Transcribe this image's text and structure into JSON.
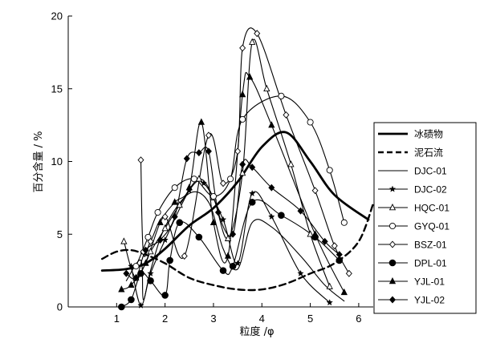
{
  "chart_data": {
    "type": "line",
    "xlabel": "粒度 /φ",
    "ylabel": "百分含量 / %",
    "xlim": [
      0,
      6.3
    ],
    "ylim": [
      0,
      20
    ],
    "xticks": [
      1,
      2,
      3,
      4,
      5,
      6
    ],
    "yticks": [
      0,
      5,
      10,
      15,
      20
    ],
    "legend_position": "right",
    "series": [
      {
        "name": "冰碛物",
        "style": "thick-solid",
        "marker": "none",
        "x": [
          0.7,
          1.2,
          1.6,
          2.0,
          2.5,
          3.0,
          3.5,
          4.0,
          4.5,
          5.0,
          5.5,
          6.2
        ],
        "y": [
          2.5,
          2.6,
          3.0,
          4.0,
          5.6,
          6.8,
          8.6,
          11.0,
          12.0,
          10.0,
          7.7,
          6.0
        ]
      },
      {
        "name": "泥石流",
        "style": "dashed",
        "marker": "none",
        "x": [
          0.7,
          1.0,
          1.3,
          1.6,
          2.0,
          2.5,
          3.0,
          3.5,
          4.0,
          4.5,
          5.0,
          5.5,
          6.0,
          6.3
        ],
        "y": [
          3.3,
          3.8,
          3.9,
          3.6,
          3.0,
          2.0,
          1.5,
          1.2,
          1.2,
          1.6,
          2.3,
          3.0,
          4.5,
          7.1
        ]
      },
      {
        "name": "DJC-01",
        "style": "solid",
        "marker": "none",
        "x": [
          1.2,
          1.5,
          1.55,
          1.7,
          2.0,
          2.5,
          2.9,
          3.2,
          3.5,
          3.8,
          4.2,
          4.8,
          5.3,
          5.7
        ],
        "y": [
          1.8,
          3.2,
          0.5,
          2.5,
          5.5,
          7.8,
          7.2,
          4.0,
          2.6,
          5.8,
          5.5,
          3.5,
          1.5,
          0.4
        ]
      },
      {
        "name": "DJC-02",
        "style": "solid",
        "marker": "star",
        "x": [
          1.3,
          1.5,
          1.7,
          2.0,
          2.5,
          2.8,
          3.2,
          3.5,
          3.8,
          4.2,
          4.8,
          5.4
        ],
        "y": [
          2.8,
          0.1,
          2.3,
          4.6,
          8.0,
          8.5,
          6.0,
          3.0,
          7.8,
          6.2,
          2.3,
          0.3
        ]
      },
      {
        "name": "HQC-01",
        "style": "solid",
        "marker": "triangle-open",
        "x": [
          1.15,
          1.4,
          1.7,
          2.0,
          2.3,
          2.7,
          3.0,
          3.3,
          3.6,
          3.8,
          4.1,
          4.6,
          5.0,
          5.4
        ],
        "y": [
          4.5,
          2.0,
          3.8,
          5.4,
          7.0,
          8.8,
          7.5,
          4.7,
          9.2,
          18.2,
          15.0,
          9.8,
          5.0,
          1.4
        ]
      },
      {
        "name": "GYQ-01",
        "style": "solid",
        "marker": "circle-open",
        "x": [
          1.4,
          1.65,
          1.85,
          2.2,
          2.6,
          3.0,
          3.35,
          3.6,
          4.4,
          5.0,
          5.4,
          5.7
        ],
        "y": [
          2.8,
          4.8,
          6.5,
          8.2,
          8.8,
          7.6,
          8.8,
          12.9,
          14.5,
          12.7,
          9.4,
          5.8
        ]
      },
      {
        "name": "BSZ-01",
        "style": "solid",
        "marker": "diamond-open",
        "x": [
          1.5,
          1.55,
          1.7,
          2.0,
          2.4,
          2.9,
          3.2,
          3.5,
          3.6,
          3.9,
          4.5,
          5.1,
          5.5,
          5.8
        ],
        "y": [
          10.1,
          3.8,
          4.5,
          6.2,
          3.5,
          11.8,
          8.5,
          10.7,
          17.8,
          18.8,
          13.2,
          8.0,
          4.2,
          2.3
        ]
      },
      {
        "name": "DPL-01",
        "style": "solid",
        "marker": "circle-filled",
        "x": [
          1.1,
          1.3,
          1.5,
          1.7,
          2.0,
          2.1,
          2.3,
          2.7,
          3.2,
          3.4,
          3.8,
          4.4,
          5.1,
          5.6
        ],
        "y": [
          0.0,
          0.5,
          2.3,
          1.8,
          0.8,
          3.2,
          5.8,
          4.8,
          2.5,
          2.8,
          7.2,
          6.3,
          4.8,
          3.2
        ]
      },
      {
        "name": "YJL-01",
        "style": "solid",
        "marker": "triangle-filled",
        "x": [
          1.1,
          1.3,
          1.6,
          1.9,
          2.2,
          2.5,
          2.75,
          3.0,
          3.3,
          3.6,
          3.75,
          4.2,
          5.1,
          5.7
        ],
        "y": [
          1.2,
          1.5,
          3.0,
          5.8,
          7.2,
          8.2,
          12.7,
          5.8,
          3.5,
          14.6,
          15.8,
          12.5,
          5.0,
          1.0
        ]
      },
      {
        "name": "YJL-02",
        "style": "solid",
        "marker": "diamond-filled",
        "x": [
          1.2,
          1.4,
          1.6,
          1.9,
          2.2,
          2.45,
          2.7,
          2.9,
          3.1,
          3.4,
          3.6,
          3.8,
          4.2,
          4.8,
          5.3,
          5.6
        ],
        "y": [
          2.3,
          2.0,
          3.9,
          4.6,
          6.2,
          10.2,
          10.6,
          10.7,
          6.5,
          5.0,
          9.8,
          9.6,
          8.2,
          6.6,
          4.5,
          3.6
        ]
      }
    ]
  }
}
